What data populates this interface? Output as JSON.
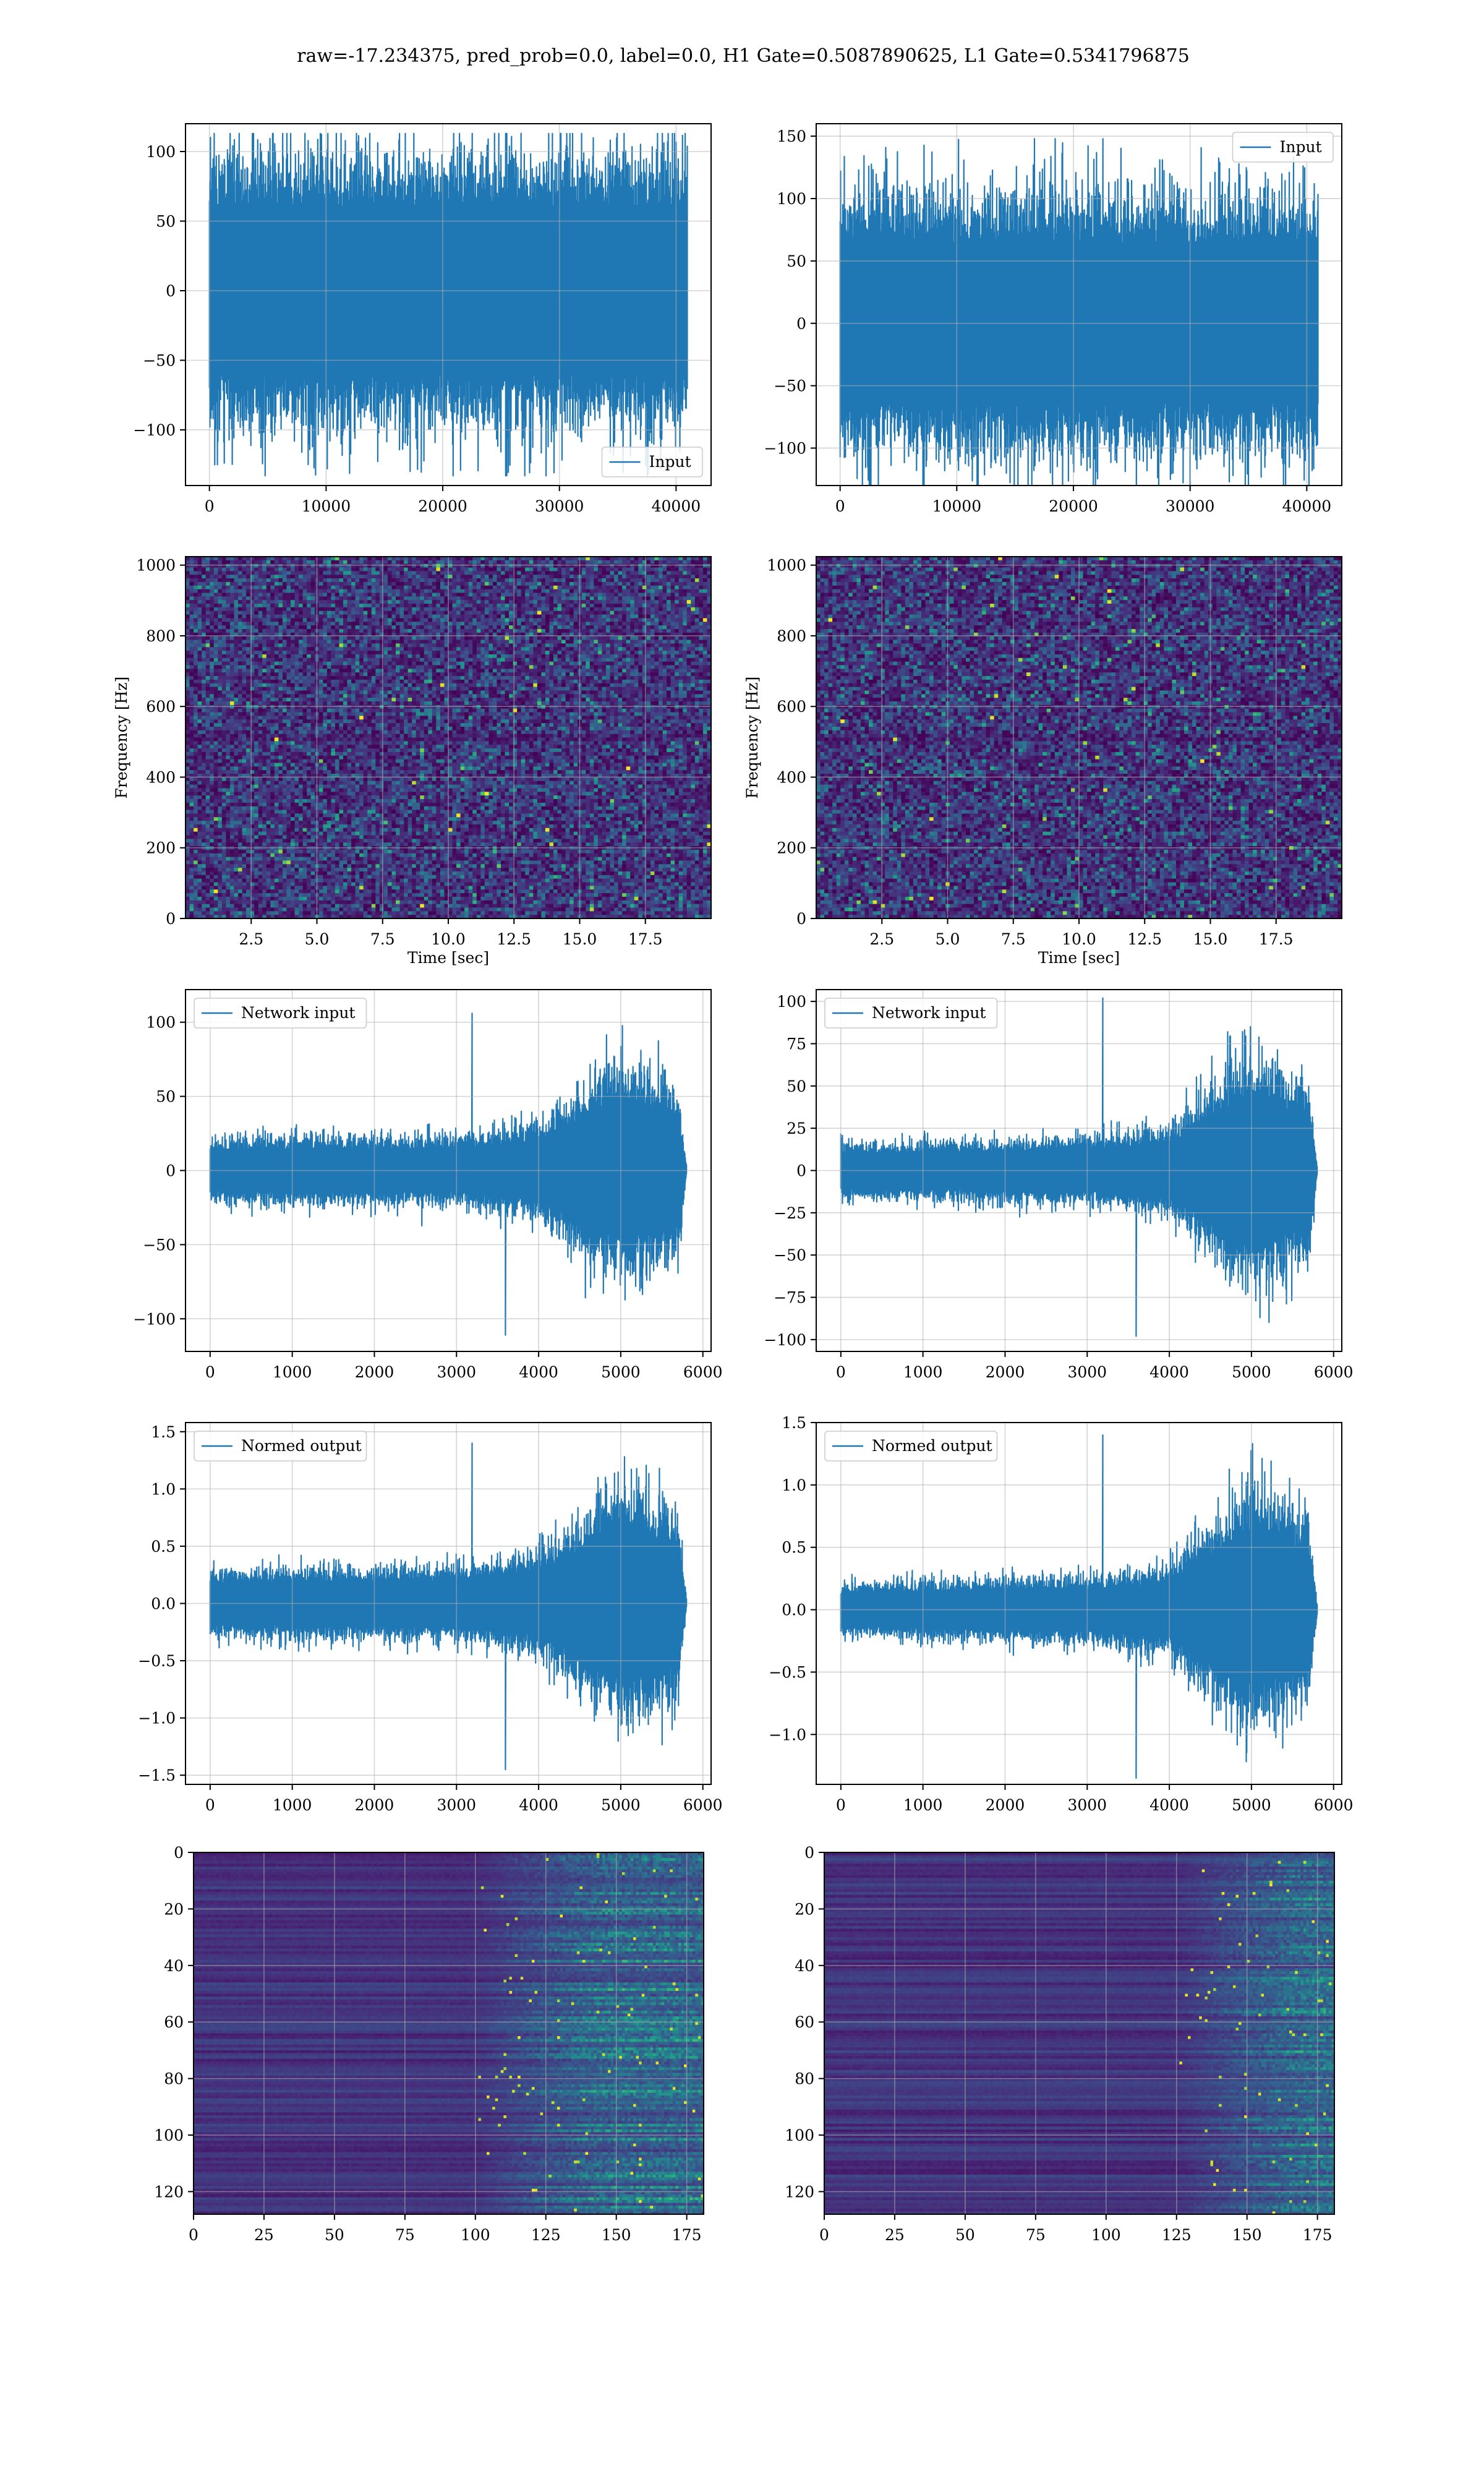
{
  "title": "raw=-17.234375, pred_prob=0.0, label=0.0, H1 Gate=0.5087890625, L1 Gate=0.5341796875",
  "colors": {
    "line": "#1f77b4",
    "grid": "#b0b0b0",
    "viridis_dark": "#440154",
    "viridis_mid": "#21918c",
    "viridis_bright": "#fde725"
  },
  "chart_data": [
    {
      "id": "input-h1",
      "type": "line",
      "title": "",
      "xlabel": "",
      "ylabel": "",
      "xlim": [
        -2050,
        43000
      ],
      "ylim": [
        -140,
        120
      ],
      "xticks": [
        0,
        10000,
        20000,
        30000,
        40000
      ],
      "yticks": [
        -100,
        -50,
        0,
        50,
        100
      ],
      "legend": "lower right",
      "series": [
        {
          "name": "Input",
          "n_samples": 40960,
          "x_range": [
            0,
            40960
          ],
          "envelope_typical": [
            -85,
            85
          ],
          "max": 113,
          "min": -133
        }
      ]
    },
    {
      "id": "input-l1",
      "type": "line",
      "title": "",
      "xlabel": "",
      "ylabel": "",
      "xlim": [
        -2050,
        43000
      ],
      "ylim": [
        -130,
        160
      ],
      "xticks": [
        0,
        10000,
        20000,
        30000,
        40000
      ],
      "yticks": [
        -100,
        -50,
        0,
        50,
        100,
        150
      ],
      "legend": "upper right",
      "series": [
        {
          "name": "Input",
          "n_samples": 40960,
          "x_range": [
            0,
            40960
          ],
          "envelope_typical": [
            -90,
            90
          ],
          "max": 148,
          "min": -130
        }
      ]
    },
    {
      "id": "spectrogram-h1",
      "type": "heatmap",
      "title": "",
      "xlabel": "Time [sec]",
      "ylabel": "Frequency [Hz]",
      "xlim": [
        0,
        20
      ],
      "ylim": [
        0,
        1024
      ],
      "xticks": [
        2.5,
        5.0,
        7.5,
        10.0,
        12.5,
        15.0,
        17.5
      ],
      "yticks": [
        0,
        200,
        400,
        600,
        800,
        1000
      ],
      "colormap": "viridis"
    },
    {
      "id": "spectrogram-l1",
      "type": "heatmap",
      "title": "",
      "xlabel": "Time [sec]",
      "ylabel": "Frequency [Hz]",
      "xlim": [
        0,
        20
      ],
      "ylim": [
        0,
        1024
      ],
      "xticks": [
        2.5,
        5.0,
        7.5,
        10.0,
        12.5,
        15.0,
        17.5
      ],
      "yticks": [
        0,
        200,
        400,
        600,
        800,
        1000
      ],
      "colormap": "viridis"
    },
    {
      "id": "network-input-h1",
      "type": "line",
      "title": "",
      "xlabel": "",
      "ylabel": "",
      "xlim": [
        -300,
        6100
      ],
      "ylim": [
        -122,
        122
      ],
      "xticks": [
        0,
        1000,
        2000,
        3000,
        4000,
        5000,
        6000
      ],
      "yticks": [
        -100,
        -50,
        0,
        50,
        100
      ],
      "legend": "upper left",
      "series": [
        {
          "name": "Network input",
          "x_range": [
            0,
            5800
          ],
          "envelope": {
            "x": [
              0,
              1000,
              2000,
              3000,
              4000,
              4700,
              5000,
              5300,
              5700,
              5800
            ],
            "amp": [
              18,
              20,
              20,
              20,
              28,
              55,
              65,
              60,
              50,
              3
            ]
          },
          "max": 106,
          "min": -111
        }
      ]
    },
    {
      "id": "network-input-l1",
      "type": "line",
      "title": "",
      "xlabel": "",
      "ylabel": "",
      "xlim": [
        -300,
        6100
      ],
      "ylim": [
        -107,
        107
      ],
      "xticks": [
        0,
        1000,
        2000,
        3000,
        4000,
        5000,
        6000
      ],
      "yticks": [
        -100,
        -75,
        -50,
        -25,
        0,
        25,
        50,
        75,
        100
      ],
      "legend": "upper left",
      "series": [
        {
          "name": "Network input",
          "x_range": [
            0,
            5800
          ],
          "envelope": {
            "x": [
              0,
              1000,
              2000,
              3000,
              4000,
              4700,
              5000,
              5300,
              5700,
              5800
            ],
            "amp": [
              14,
              15,
              16,
              17,
              22,
              50,
              60,
              55,
              45,
              3
            ]
          },
          "max": 102,
          "min": -98
        }
      ]
    },
    {
      "id": "normed-output-h1",
      "type": "line",
      "title": "",
      "xlabel": "",
      "ylabel": "",
      "xlim": [
        -300,
        6100
      ],
      "ylim": [
        -1.58,
        1.58
      ],
      "xticks": [
        0,
        1000,
        2000,
        3000,
        4000,
        5000,
        6000
      ],
      "yticks": [
        -1.5,
        -1.0,
        -0.5,
        0.0,
        0.5,
        1.0,
        1.5
      ],
      "legend": "upper left",
      "series": [
        {
          "name": "Normed output",
          "x_range": [
            0,
            5800
          ],
          "envelope": {
            "x": [
              0,
              1000,
              2000,
              3000,
              4000,
              4700,
              5000,
              5300,
              5700,
              5800
            ],
            "amp": [
              0.25,
              0.27,
              0.27,
              0.28,
              0.38,
              0.75,
              0.9,
              0.85,
              0.7,
              0.04
            ]
          },
          "max": 1.4,
          "min": -1.45
        }
      ]
    },
    {
      "id": "normed-output-l1",
      "type": "line",
      "title": "",
      "xlabel": "",
      "ylabel": "",
      "xlim": [
        -300,
        6100
      ],
      "ylim": [
        -1.4,
        1.5
      ],
      "xticks": [
        0,
        1000,
        2000,
        3000,
        4000,
        5000,
        6000
      ],
      "yticks": [
        -1.0,
        -0.5,
        0.0,
        0.5,
        1.0,
        1.5
      ],
      "legend": "upper left",
      "series": [
        {
          "name": "Normed output",
          "x_range": [
            0,
            5800
          ],
          "envelope": {
            "x": [
              0,
              1000,
              2000,
              3000,
              4000,
              4700,
              5000,
              5300,
              5700,
              5800
            ],
            "amp": [
              0.18,
              0.2,
              0.22,
              0.23,
              0.3,
              0.7,
              0.85,
              0.75,
              0.6,
              0.04
            ]
          },
          "max": 1.4,
          "min": -1.35
        }
      ]
    },
    {
      "id": "feature-map-h1",
      "type": "heatmap",
      "title": "",
      "xlabel": "",
      "ylabel": "",
      "xlim": [
        0,
        181
      ],
      "ylim": [
        128,
        0
      ],
      "xticks": [
        0,
        25,
        50,
        75,
        100,
        125,
        150,
        175
      ],
      "yticks": [
        0,
        20,
        40,
        60,
        80,
        100,
        120
      ],
      "colormap": "viridis",
      "activity_onset": 100
    },
    {
      "id": "feature-map-l1",
      "type": "heatmap",
      "title": "",
      "xlabel": "",
      "ylabel": "",
      "xlim": [
        0,
        181
      ],
      "ylim": [
        128,
        0
      ],
      "xticks": [
        0,
        25,
        50,
        75,
        100,
        125,
        150,
        175
      ],
      "yticks": [
        0,
        20,
        40,
        60,
        80,
        100,
        120
      ],
      "colormap": "viridis",
      "activity_onset": 125
    }
  ]
}
